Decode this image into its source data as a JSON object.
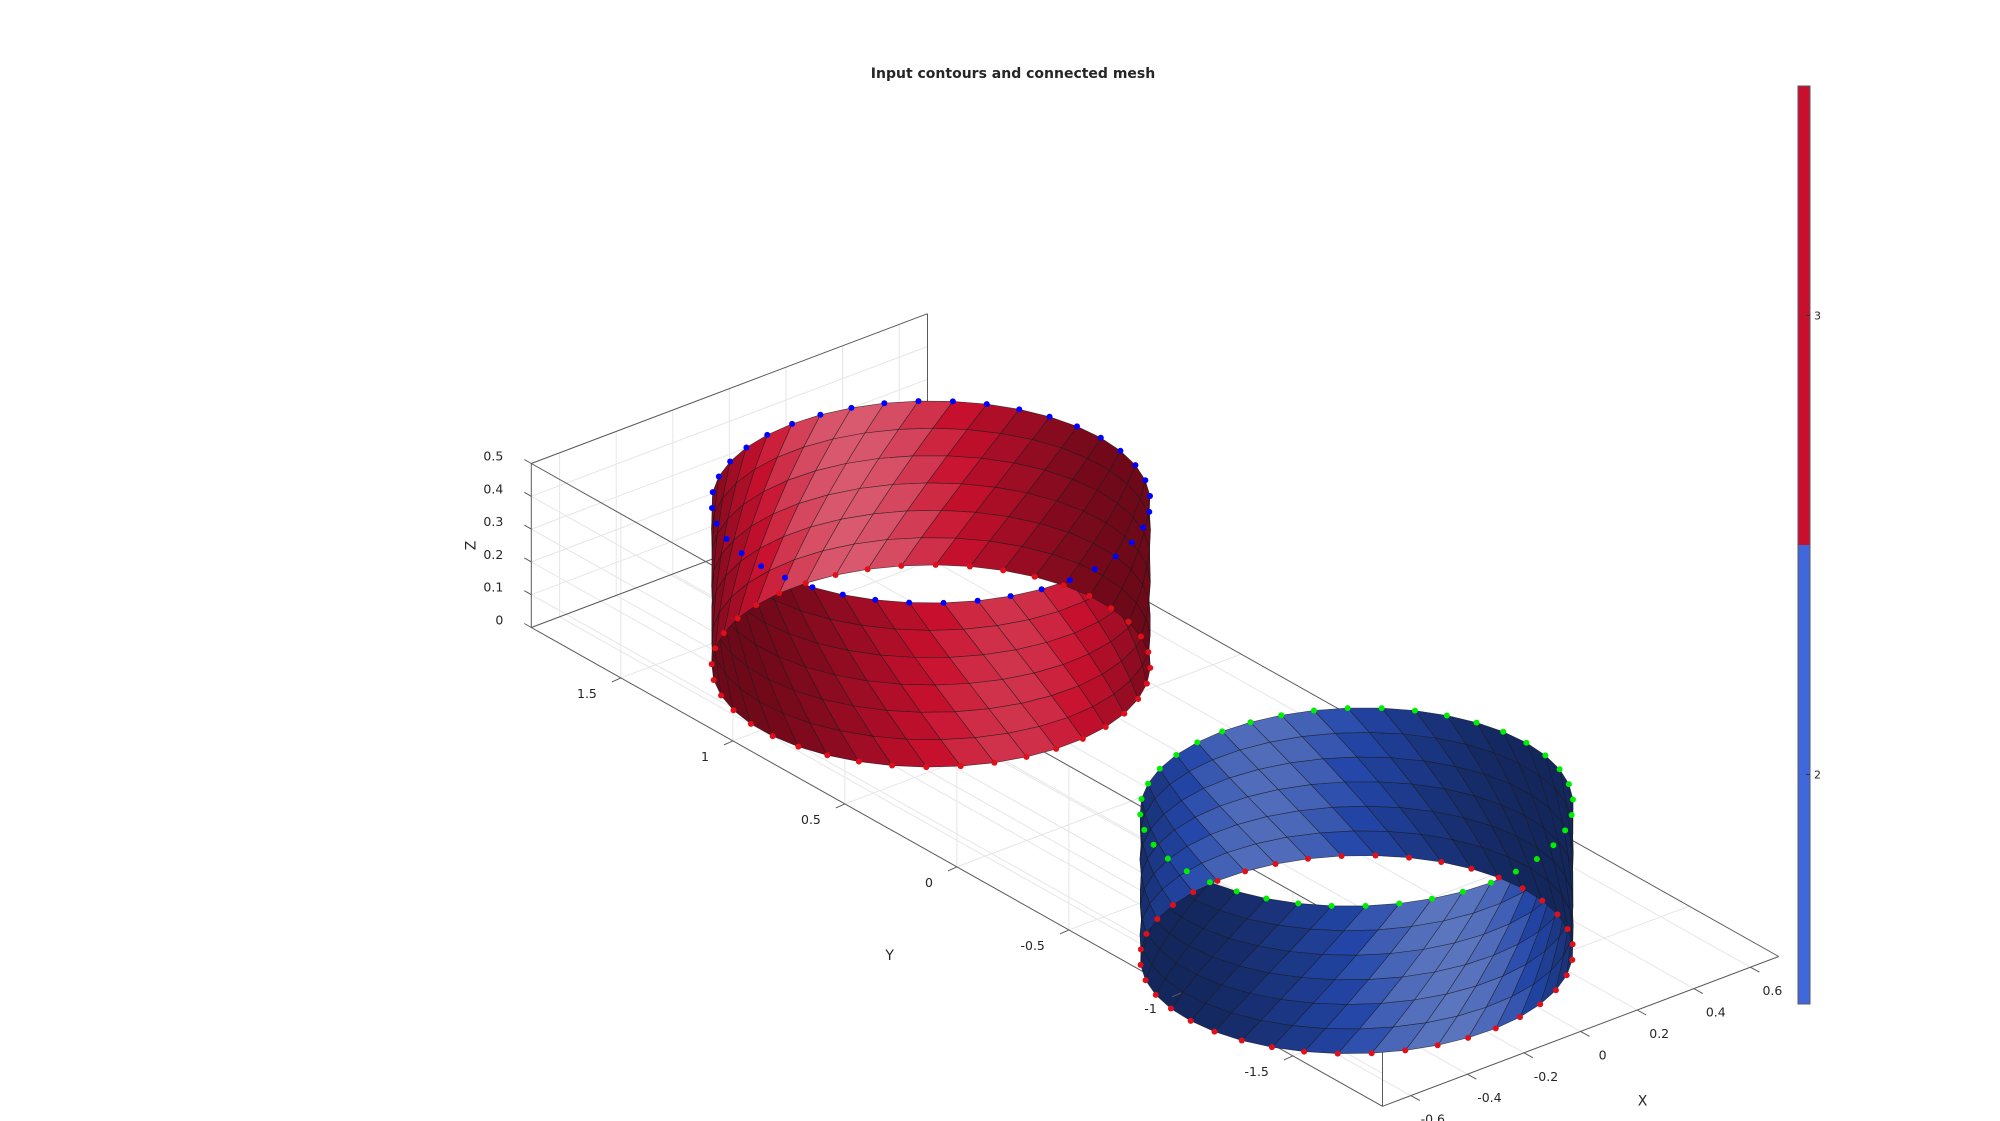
{
  "chart_data": {
    "type": "3d-surface",
    "title": "Input contours and connected mesh",
    "xlabel": "X",
    "ylabel": "Y",
    "zlabel": "Z",
    "xlim": [
      -0.7,
      0.7
    ],
    "ylim": [
      -1.9,
      1.9
    ],
    "zlim": [
      0,
      0.5
    ],
    "x_ticks": [
      "-0.6",
      "-0.4",
      "-0.2",
      "0",
      "0.2",
      "0.4",
      "0.6"
    ],
    "x_tick_values": [
      -0.6,
      -0.4,
      -0.2,
      0,
      0.2,
      0.4,
      0.6
    ],
    "y_ticks": [
      "-1.5",
      "-1",
      "-0.5",
      "0",
      "0.5",
      "1",
      "1.5"
    ],
    "y_tick_values": [
      -1.5,
      -1,
      -0.5,
      0,
      0.5,
      1,
      1.5
    ],
    "z_ticks": [
      "0",
      "0.1",
      "0.2",
      "0.3",
      "0.4",
      "0.5"
    ],
    "z_tick_values": [
      0,
      0.1,
      0.2,
      0.3,
      0.4,
      0.5
    ],
    "grid": true,
    "surfaces": [
      {
        "group": 3,
        "shape": "twisted cylinder band",
        "center_x": 0,
        "center_y": 1,
        "radius": 0.6,
        "z_range": [
          0,
          0.5
        ],
        "top_contour_marker_color": "#0000ff",
        "bottom_contour_marker_color": "#e0101a",
        "face_color": "#c8102e"
      },
      {
        "group": 2,
        "shape": "twisted elliptic band",
        "center_x": 0,
        "center_y": -0.9,
        "radius": 0.6,
        "z_range": [
          -0.15,
          0.3
        ],
        "top_contour_marker_color": "#00ee00",
        "bottom_contour_marker_color": "#e0101a",
        "face_color": "#2346a8"
      }
    ],
    "colorbar": {
      "ticks": [
        "2",
        "3"
      ],
      "tick_values": [
        2,
        3
      ],
      "clim": [
        1.5,
        3.5
      ],
      "colors": [
        "#3e68dc",
        "#c8102e"
      ]
    }
  }
}
